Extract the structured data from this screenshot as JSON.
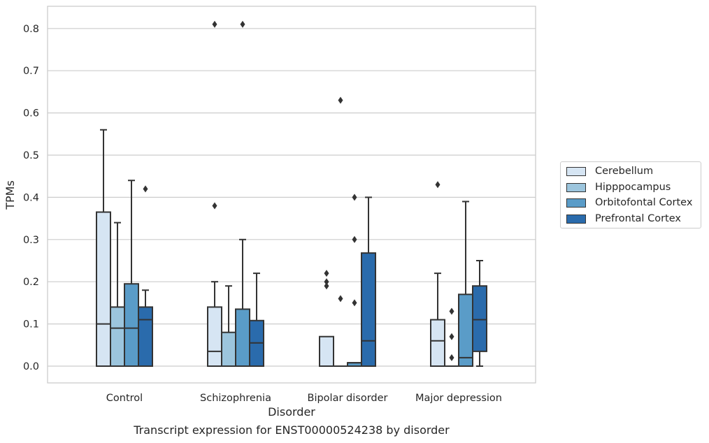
{
  "chart_data": {
    "type": "box",
    "xlabel": "Disorder",
    "ylabel": "TPMs",
    "ylim": [
      -0.04,
      0.85
    ],
    "yticks": [
      0.0,
      0.1,
      0.2,
      0.3,
      0.4,
      0.5,
      0.6,
      0.7,
      0.8
    ],
    "ytick_labels": [
      "0.0",
      "0.1",
      "0.2",
      "0.3",
      "0.4",
      "0.5",
      "0.6",
      "0.7",
      "0.8"
    ],
    "grid": true,
    "legend_position": "right",
    "categories": [
      "Control",
      "Schizophrenia",
      "Bipolar disorder",
      "Major depression"
    ],
    "series": [
      {
        "name": "Cerebellum",
        "color": "#d6e5f3",
        "boxes": [
          {
            "whislo": 0.0,
            "q1": 0.0,
            "med": 0.1,
            "q3": 0.365,
            "whishi": 0.56,
            "fliers": []
          },
          {
            "whislo": 0.0,
            "q1": 0.0,
            "med": 0.035,
            "q3": 0.14,
            "whishi": 0.2,
            "fliers": [
              0.38,
              0.81
            ]
          },
          {
            "whislo": 0.0,
            "q1": 0.0,
            "med": 0.0,
            "q3": 0.07,
            "whishi": 0.07,
            "fliers": [
              0.19,
              0.2,
              0.22
            ]
          },
          {
            "whislo": 0.0,
            "q1": 0.0,
            "med": 0.06,
            "q3": 0.11,
            "whishi": 0.22,
            "fliers": [
              0.43
            ]
          }
        ]
      },
      {
        "name": "Hipppocampus",
        "color": "#9cc5dd",
        "boxes": [
          {
            "whislo": 0.0,
            "q1": 0.0,
            "med": 0.09,
            "q3": 0.14,
            "whishi": 0.34,
            "fliers": []
          },
          {
            "whislo": 0.0,
            "q1": 0.0,
            "med": 0.0,
            "q3": 0.08,
            "whishi": 0.19,
            "fliers": []
          },
          {
            "whislo": 0.0,
            "q1": 0.0,
            "med": 0.0,
            "q3": 0.0,
            "whishi": 0.0,
            "fliers": [
              0.16,
              0.63
            ]
          },
          {
            "whislo": 0.0,
            "q1": 0.0,
            "med": 0.0,
            "q3": 0.0,
            "whishi": 0.0,
            "fliers": [
              0.02,
              0.07,
              0.13
            ]
          }
        ]
      },
      {
        "name": "Orbitofontal Cortex",
        "color": "#5a9cc8",
        "boxes": [
          {
            "whislo": 0.0,
            "q1": 0.0,
            "med": 0.09,
            "q3": 0.195,
            "whishi": 0.44,
            "fliers": []
          },
          {
            "whislo": 0.0,
            "q1": 0.0,
            "med": 0.0,
            "q3": 0.135,
            "whishi": 0.3,
            "fliers": [
              0.81
            ]
          },
          {
            "whislo": 0.0,
            "q1": 0.0,
            "med": 0.008,
            "q3": 0.008,
            "whishi": 0.008,
            "fliers": [
              0.15,
              0.3,
              0.4
            ]
          },
          {
            "whislo": 0.0,
            "q1": 0.0,
            "med": 0.02,
            "q3": 0.17,
            "whishi": 0.39,
            "fliers": []
          }
        ]
      },
      {
        "name": "Prefrontal Cortex",
        "color": "#2a6bac",
        "boxes": [
          {
            "whislo": 0.0,
            "q1": 0.0,
            "med": 0.11,
            "q3": 0.14,
            "whishi": 0.18,
            "fliers": [
              0.42
            ]
          },
          {
            "whislo": 0.0,
            "q1": 0.0,
            "med": 0.055,
            "q3": 0.108,
            "whishi": 0.22,
            "fliers": []
          },
          {
            "whislo": 0.0,
            "q1": 0.0,
            "med": 0.06,
            "q3": 0.268,
            "whishi": 0.4,
            "fliers": []
          },
          {
            "whislo": 0.0,
            "q1": 0.035,
            "med": 0.11,
            "q3": 0.19,
            "whishi": 0.25,
            "fliers": []
          }
        ]
      }
    ]
  },
  "caption": "Transcript expression for ENST00000524238 by disorder"
}
